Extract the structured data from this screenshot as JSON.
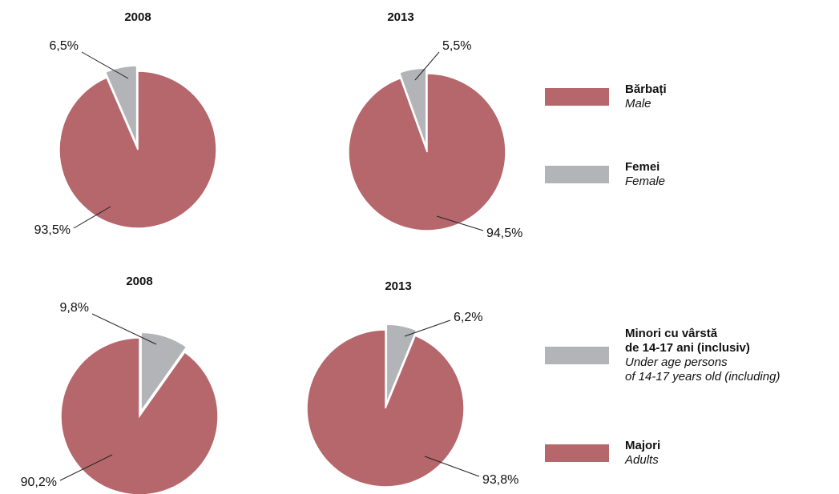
{
  "chart_data": [
    {
      "type": "pie",
      "title": "2008",
      "categories": [
        [
          "Bărbați"
        ],
        [
          "Femei"
        ]
      ],
      "categories_en": [
        [
          "Male"
        ],
        [
          "Female"
        ]
      ],
      "values": [
        93.5,
        6.5
      ],
      "value_labels": [
        "93,5%",
        "6,5%"
      ],
      "colors": [
        "#b5676b",
        "#b3b4b8"
      ],
      "explode": [
        false,
        true
      ],
      "legend": "right"
    },
    {
      "type": "pie",
      "title": "2013",
      "values": [
        94.5,
        5.5
      ],
      "value_labels": [
        "94,5%",
        "5,5%"
      ],
      "colors": [
        "#b5676b",
        "#b3b4b8"
      ],
      "explode": [
        false,
        true
      ]
    },
    {
      "type": "pie",
      "title": "2008",
      "categories": [
        [
          "Minori cu vârstă",
          "de 14-17 ani (inclusiv)"
        ],
        [
          "Majori"
        ]
      ],
      "categories_en": [
        [
          "Under age persons",
          "of 14-17 years old (including)"
        ],
        [
          "Adults"
        ]
      ],
      "values": [
        9.8,
        90.2
      ],
      "value_labels": [
        "9,8%",
        "90,2%"
      ],
      "colors": [
        "#b3b4b8",
        "#b5676b"
      ],
      "explode": [
        true,
        false
      ],
      "legend": "right"
    },
    {
      "type": "pie",
      "title": "2013",
      "values": [
        6.2,
        93.8
      ],
      "value_labels": [
        "6,2%",
        "93,8%"
      ],
      "colors": [
        "#b3b4b8",
        "#b5676b"
      ],
      "explode": [
        true,
        false
      ]
    }
  ]
}
